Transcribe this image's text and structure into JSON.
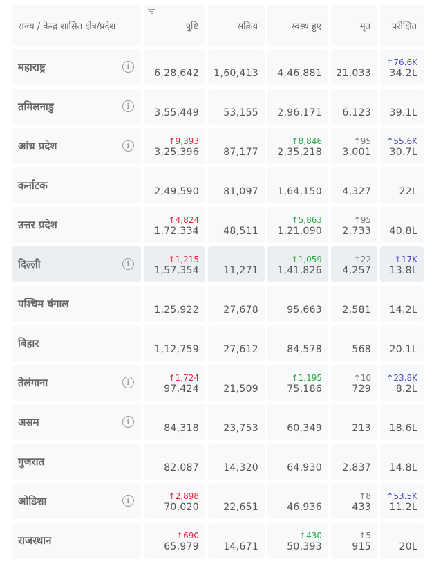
{
  "headers": {
    "state": "राज्य / केन्द्र शासित क्षेत्र/प्रदेश",
    "confirmed": "पुष्टि",
    "active": "सक्रिय",
    "recovered": "स्वस्थ हुए",
    "deceased": "मृत",
    "tested": "परीक्षित"
  },
  "colors": {
    "confirmed_delta": "#e0283c",
    "recovered_delta": "#28a745",
    "deceased_delta": "#777777",
    "tested_delta": "#4b3fc5"
  },
  "rows": [
    {
      "state": "महाराष्ट्र",
      "info": true,
      "confirmed": "6,28,642",
      "confirmed_delta": "",
      "active": "1,60,413",
      "recovered": "4,46,881",
      "recovered_delta": "",
      "deceased": "21,033",
      "deceased_delta": "",
      "tested": "34.2L",
      "tested_delta": "↑76.6K"
    },
    {
      "state": "तमिलनाडु",
      "info": true,
      "confirmed": "3,55,449",
      "confirmed_delta": "",
      "active": "53,155",
      "recovered": "2,96,171",
      "recovered_delta": "",
      "deceased": "6,123",
      "deceased_delta": "",
      "tested": "39.1L",
      "tested_delta": ""
    },
    {
      "state": "आंध्र प्रदेश",
      "info": true,
      "confirmed": "3,25,396",
      "confirmed_delta": "↑9,393",
      "active": "87,177",
      "recovered": "2,35,218",
      "recovered_delta": "↑8,846",
      "deceased": "3,001",
      "deceased_delta": "↑95",
      "tested": "30.7L",
      "tested_delta": "↑55.6K"
    },
    {
      "state": "कर्नाटक",
      "info": false,
      "confirmed": "2,49,590",
      "confirmed_delta": "",
      "active": "81,097",
      "recovered": "1,64,150",
      "recovered_delta": "",
      "deceased": "4,327",
      "deceased_delta": "",
      "tested": "22L",
      "tested_delta": ""
    },
    {
      "state": "उत्तर प्रदेश",
      "info": false,
      "confirmed": "1,72,334",
      "confirmed_delta": "↑4,824",
      "active": "48,511",
      "recovered": "1,21,090",
      "recovered_delta": "↑5,863",
      "deceased": "2,733",
      "deceased_delta": "↑95",
      "tested": "40.8L",
      "tested_delta": ""
    },
    {
      "state": "दिल्ली",
      "info": true,
      "highlight": true,
      "confirmed": "1,57,354",
      "confirmed_delta": "↑1,215",
      "active": "11,271",
      "recovered": "1,41,826",
      "recovered_delta": "↑1,059",
      "deceased": "4,257",
      "deceased_delta": "↑22",
      "tested": "13.8L",
      "tested_delta": "↑17K"
    },
    {
      "state": "पश्चिम बंगाल",
      "info": false,
      "confirmed": "1,25,922",
      "confirmed_delta": "",
      "active": "27,678",
      "recovered": "95,663",
      "recovered_delta": "",
      "deceased": "2,581",
      "deceased_delta": "",
      "tested": "14.2L",
      "tested_delta": ""
    },
    {
      "state": "बिहार",
      "info": false,
      "confirmed": "1,12,759",
      "confirmed_delta": "",
      "active": "27,612",
      "recovered": "84,578",
      "recovered_delta": "",
      "deceased": "568",
      "deceased_delta": "",
      "tested": "20.1L",
      "tested_delta": ""
    },
    {
      "state": "तेलंगाना",
      "info": true,
      "confirmed": "97,424",
      "confirmed_delta": "↑1,724",
      "active": "21,509",
      "recovered": "75,186",
      "recovered_delta": "↑1,195",
      "deceased": "729",
      "deceased_delta": "↑10",
      "tested": "8.2L",
      "tested_delta": "↑23.8K"
    },
    {
      "state": "असम",
      "info": true,
      "confirmed": "84,318",
      "confirmed_delta": "",
      "active": "23,753",
      "recovered": "60,349",
      "recovered_delta": "",
      "deceased": "213",
      "deceased_delta": "",
      "tested": "18.6L",
      "tested_delta": ""
    },
    {
      "state": "गुजरात",
      "info": false,
      "confirmed": "82,087",
      "confirmed_delta": "",
      "active": "14,320",
      "recovered": "64,930",
      "recovered_delta": "",
      "deceased": "2,837",
      "deceased_delta": "",
      "tested": "14.8L",
      "tested_delta": ""
    },
    {
      "state": "ओडिशा",
      "info": true,
      "confirmed": "70,020",
      "confirmed_delta": "↑2,898",
      "active": "22,651",
      "recovered": "46,936",
      "recovered_delta": "",
      "deceased": "433",
      "deceased_delta": "↑8",
      "tested": "11.2L",
      "tested_delta": "↑53.5K"
    },
    {
      "state": "राजस्थान",
      "info": false,
      "confirmed": "65,979",
      "confirmed_delta": "↑690",
      "active": "14,671",
      "recovered": "50,393",
      "recovered_delta": "↑430",
      "deceased": "915",
      "deceased_delta": "↑5",
      "tested": "20L",
      "tested_delta": ""
    }
  ]
}
